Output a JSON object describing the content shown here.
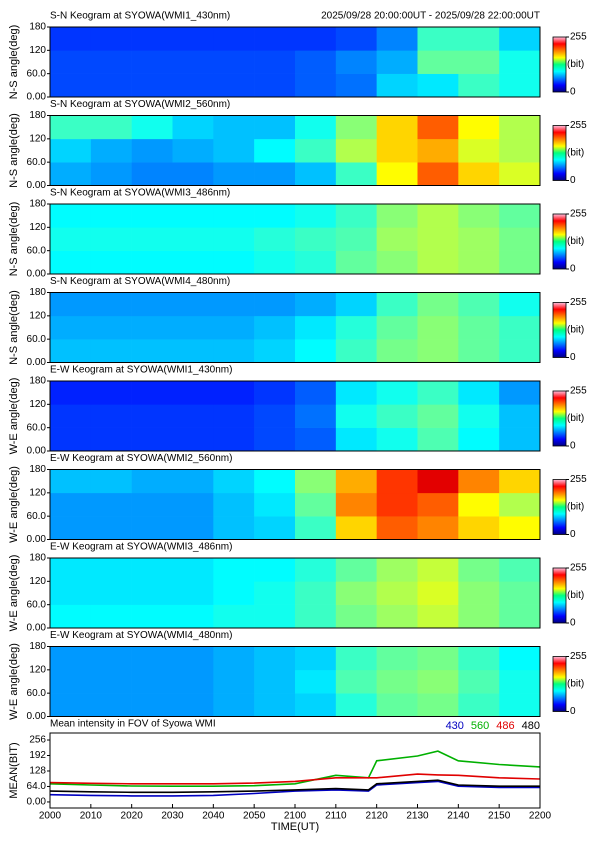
{
  "chart_data": [
    {
      "type": "heatmap",
      "title": "S-N Keogram at SYOWA(WMI1_430nm)",
      "subtitle": "2025/09/28 20:00:00UT - 2025/09/28 22:00:00UT",
      "ylabel": "N-S angle(deg)",
      "xlim": [
        0,
        120
      ],
      "ylim": [
        0,
        180
      ],
      "yticks": [
        {
          "value": 0,
          "label": "0.00"
        },
        {
          "value": 60,
          "label": "60.0"
        },
        120,
        180
      ],
      "xbins": [
        0,
        10,
        20,
        30,
        40,
        50,
        60,
        70,
        80,
        90,
        100,
        110,
        120
      ],
      "ybins": [
        0,
        60,
        120,
        180
      ],
      "zlim": [
        0,
        255
      ],
      "zticks": [
        0,
        255
      ],
      "zlabel": "(bit)",
      "values": [
        [
          50,
          50,
          50,
          50,
          50,
          50,
          55,
          60,
          85,
          90,
          110,
          100
        ],
        [
          50,
          50,
          50,
          50,
          50,
          50,
          55,
          65,
          75,
          120,
          120,
          100
        ],
        [
          45,
          45,
          45,
          45,
          45,
          45,
          45,
          50,
          65,
          110,
          110,
          85
        ]
      ]
    },
    {
      "type": "heatmap",
      "title": "S-N Keogram at SYOWA(WMI2_560nm)",
      "ylabel": "N-S angle(deg)",
      "xlim": [
        0,
        120
      ],
      "ylim": [
        0,
        180
      ],
      "yticks": [
        {
          "value": 0,
          "label": "0.00"
        },
        {
          "value": 60,
          "label": "60.0"
        },
        120,
        180
      ],
      "xbins": [
        0,
        10,
        20,
        30,
        40,
        50,
        60,
        70,
        80,
        90,
        100,
        110,
        120
      ],
      "ybins": [
        0,
        60,
        120,
        180
      ],
      "zlim": [
        0,
        255
      ],
      "zticks": [
        0,
        255
      ],
      "zlabel": "(bit)",
      "values": [
        [
          75,
          70,
          65,
          65,
          70,
          70,
          80,
          110,
          160,
          200,
          170,
          150
        ],
        [
          85,
          75,
          70,
          75,
          80,
          95,
          110,
          140,
          170,
          180,
          150,
          140
        ],
        [
          110,
          110,
          100,
          85,
          80,
          80,
          100,
          130,
          170,
          200,
          160,
          140
        ]
      ]
    },
    {
      "type": "heatmap",
      "title": "S-N Keogram at SYOWA(WMI3_486nm)",
      "ylabel": "N-S angle(deg)",
      "xlim": [
        0,
        120
      ],
      "ylim": [
        0,
        180
      ],
      "yticks": [
        {
          "value": 0,
          "label": "0.00"
        },
        {
          "value": 60,
          "label": "60.0"
        },
        120,
        180
      ],
      "xbins": [
        0,
        10,
        20,
        30,
        40,
        50,
        60,
        70,
        80,
        90,
        100,
        110,
        120
      ],
      "ybins": [
        0,
        60,
        120,
        180
      ],
      "zlim": [
        0,
        255
      ],
      "zticks": [
        0,
        255
      ],
      "zlabel": "(bit)",
      "values": [
        [
          95,
          95,
          95,
          95,
          95,
          100,
          105,
          120,
          130,
          140,
          135,
          125
        ],
        [
          100,
          100,
          100,
          100,
          100,
          105,
          110,
          115,
          135,
          140,
          135,
          125
        ],
        [
          95,
          95,
          95,
          95,
          95,
          95,
          100,
          110,
          130,
          140,
          130,
          120
        ]
      ]
    },
    {
      "type": "heatmap",
      "title": "S-N Keogram at SYOWA(WMI4_480nm)",
      "ylabel": "N-S angle(deg)",
      "xlim": [
        0,
        120
      ],
      "ylim": [
        0,
        180
      ],
      "yticks": [
        {
          "value": 0,
          "label": "0.00"
        },
        {
          "value": 60,
          "label": "60.0"
        },
        120,
        180
      ],
      "xbins": [
        0,
        10,
        20,
        30,
        40,
        50,
        60,
        70,
        80,
        90,
        100,
        110,
        120
      ],
      "ybins": [
        0,
        60,
        120,
        180
      ],
      "zlim": [
        0,
        255
      ],
      "zticks": [
        0,
        255
      ],
      "zlabel": "(bit)",
      "values": [
        [
          80,
          80,
          80,
          80,
          80,
          85,
          95,
          110,
          125,
          130,
          120,
          110
        ],
        [
          75,
          75,
          75,
          75,
          75,
          80,
          90,
          105,
          120,
          130,
          120,
          110
        ],
        [
          70,
          70,
          70,
          70,
          70,
          70,
          75,
          85,
          110,
          125,
          115,
          100
        ]
      ]
    },
    {
      "type": "heatmap",
      "title": "E-W Keogram at SYOWA(WMI1_430nm)",
      "ylabel": "W-E angle(deg)",
      "xlim": [
        0,
        120
      ],
      "ylim": [
        0,
        180
      ],
      "yticks": [
        {
          "value": 0,
          "label": "0.00"
        },
        {
          "value": 60,
          "label": "60.0"
        },
        120,
        180
      ],
      "xbins": [
        0,
        10,
        20,
        30,
        40,
        50,
        60,
        70,
        80,
        90,
        100,
        110,
        120
      ],
      "ybins": [
        0,
        60,
        120,
        180
      ],
      "zlim": [
        0,
        255
      ],
      "zticks": [
        0,
        255
      ],
      "zlabel": "(bit)",
      "values": [
        [
          45,
          45,
          45,
          45,
          45,
          50,
          55,
          90,
          100,
          115,
          95,
          80
        ],
        [
          45,
          45,
          45,
          45,
          45,
          50,
          60,
          100,
          110,
          120,
          100,
          80
        ],
        [
          40,
          40,
          40,
          40,
          40,
          45,
          55,
          90,
          100,
          110,
          90,
          70
        ]
      ]
    },
    {
      "type": "heatmap",
      "title": "E-W Keogram at SYOWA(WMI2_560nm)",
      "ylabel": "W-E angle(deg)",
      "xlim": [
        0,
        120
      ],
      "ylim": [
        0,
        180
      ],
      "yticks": [
        {
          "value": 0,
          "label": "0.00"
        },
        {
          "value": 60,
          "label": "60.0"
        },
        120,
        180
      ],
      "xbins": [
        0,
        10,
        20,
        30,
        40,
        50,
        60,
        70,
        80,
        90,
        100,
        110,
        120
      ],
      "ybins": [
        0,
        60,
        120,
        180
      ],
      "zlim": [
        0,
        255
      ],
      "zticks": [
        0,
        255
      ],
      "zlabel": "(bit)",
      "values": [
        [
          70,
          70,
          70,
          70,
          80,
          85,
          110,
          170,
          200,
          190,
          170,
          160
        ],
        [
          70,
          70,
          70,
          70,
          80,
          90,
          120,
          190,
          210,
          200,
          160,
          140
        ],
        [
          80,
          80,
          75,
          75,
          85,
          95,
          130,
          180,
          210,
          230,
          190,
          170
        ]
      ]
    },
    {
      "type": "heatmap",
      "title": "E-W Keogram at SYOWA(WMI3_486nm)",
      "ylabel": "W-E angle(deg)",
      "xlim": [
        0,
        120
      ],
      "ylim": [
        0,
        180
      ],
      "yticks": [
        {
          "value": 0,
          "label": "0.00"
        },
        {
          "value": 60,
          "label": "60.0"
        },
        120,
        180
      ],
      "xbins": [
        0,
        10,
        20,
        30,
        40,
        50,
        60,
        70,
        80,
        90,
        100,
        110,
        120
      ],
      "ybins": [
        0,
        60,
        120,
        180
      ],
      "zlim": [
        0,
        255
      ],
      "zticks": [
        0,
        255
      ],
      "zlabel": "(bit)",
      "values": [
        [
          95,
          95,
          95,
          95,
          100,
          100,
          110,
          125,
          135,
          145,
          130,
          120
        ],
        [
          90,
          90,
          90,
          90,
          95,
          100,
          110,
          130,
          140,
          150,
          130,
          120
        ],
        [
          90,
          90,
          90,
          90,
          95,
          95,
          105,
          120,
          135,
          145,
          125,
          115
        ]
      ]
    },
    {
      "type": "heatmap",
      "title": "E-W Keogram at SYOWA(WMI4_480nm)",
      "ylabel": "W-E angle(deg)",
      "xlim": [
        0,
        120
      ],
      "ylim": [
        0,
        180
      ],
      "yticks": [
        {
          "value": 0,
          "label": "0.00"
        },
        {
          "value": 60,
          "label": "60.0"
        },
        120,
        180
      ],
      "xbins": [
        0,
        10,
        20,
        30,
        40,
        50,
        60,
        70,
        80,
        90,
        100,
        110,
        120
      ],
      "ybins": [
        0,
        60,
        120,
        180
      ],
      "zlim": [
        0,
        255
      ],
      "zticks": [
        0,
        255
      ],
      "zlabel": "(bit)",
      "values": [
        [
          70,
          70,
          70,
          70,
          75,
          80,
          85,
          105,
          120,
          125,
          110,
          100
        ],
        [
          70,
          70,
          70,
          70,
          75,
          80,
          90,
          115,
          125,
          130,
          115,
          100
        ],
        [
          70,
          70,
          70,
          70,
          75,
          80,
          85,
          110,
          120,
          125,
          110,
          95
        ]
      ]
    },
    {
      "type": "line",
      "title": "Mean intensity in FOV of Syowa WMI",
      "ylabel": "MEAN(BIT)",
      "xlabel": "TIME(UT)",
      "xlim": [
        0,
        120
      ],
      "ylim": [
        -25,
        285
      ],
      "xticks": [
        {
          "value": 0,
          "label": "2000"
        },
        {
          "value": 10,
          "label": "2010"
        },
        {
          "value": 20,
          "label": "2020"
        },
        {
          "value": 30,
          "label": "2030"
        },
        {
          "value": 40,
          "label": "2040"
        },
        {
          "value": 50,
          "label": "2050"
        },
        {
          "value": 60,
          "label": "2100"
        },
        {
          "value": 70,
          "label": "2110"
        },
        {
          "value": 80,
          "label": "2120"
        },
        {
          "value": 90,
          "label": "2130"
        },
        {
          "value": 100,
          "label": "2140"
        },
        {
          "value": 110,
          "label": "2150"
        },
        {
          "value": 120,
          "label": "2200"
        }
      ],
      "yticks": [
        {
          "value": 0,
          "label": "0.00"
        },
        {
          "value": 64,
          "label": "64.0"
        },
        128,
        192,
        256
      ],
      "x": [
        0,
        10,
        20,
        30,
        40,
        50,
        60,
        70,
        78,
        80,
        90,
        95,
        100,
        110,
        120
      ],
      "series": [
        {
          "name": "430",
          "color": "#0000c0",
          "values": [
            30,
            27,
            25,
            25,
            27,
            35,
            45,
            50,
            45,
            70,
            80,
            85,
            65,
            60,
            60
          ]
        },
        {
          "name": "560",
          "color": "#00b000",
          "values": [
            75,
            70,
            66,
            65,
            65,
            67,
            75,
            110,
            100,
            170,
            190,
            210,
            170,
            155,
            145
          ]
        },
        {
          "name": "486",
          "color": "#e00000",
          "values": [
            80,
            77,
            75,
            75,
            75,
            78,
            85,
            100,
            100,
            100,
            115,
            112,
            110,
            100,
            95
          ]
        },
        {
          "name": "480",
          "color": "#000000",
          "values": [
            45,
            42,
            40,
            40,
            42,
            45,
            50,
            55,
            50,
            75,
            85,
            90,
            70,
            65,
            65
          ]
        }
      ]
    }
  ]
}
